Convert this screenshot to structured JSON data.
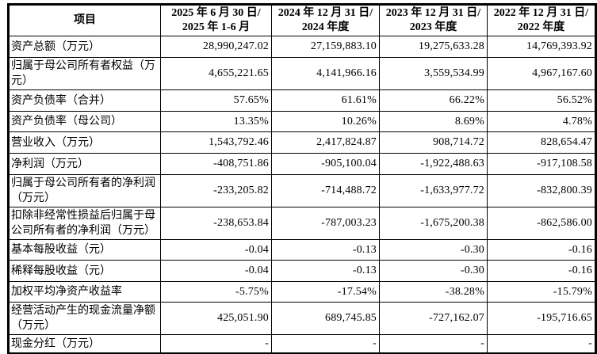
{
  "table": {
    "columns": [
      {
        "label": "项目"
      },
      {
        "label": "2025 年 6 月 30 日/\n2025 年 1-6 月"
      },
      {
        "label": "2024 年 12 月 31 日/\n2024 年度"
      },
      {
        "label": "2023 年 12 月 31 日/\n2023 年度"
      },
      {
        "label": "2022 年 12 月 31 日/\n2022 年度"
      }
    ],
    "rows": [
      {
        "label": "资产总额（万元）",
        "values": [
          "28,990,247.02",
          "27,159,883.10",
          "19,275,633.28",
          "14,769,393.92"
        ]
      },
      {
        "label": "归属于母公司所有者权益（万元）",
        "values": [
          "4,655,221.65",
          "4,141,966.16",
          "3,559,534.99",
          "4,967,167.60"
        ]
      },
      {
        "label": "资产负债率（合并）",
        "values": [
          "57.65%",
          "61.61%",
          "66.22%",
          "56.52%"
        ]
      },
      {
        "label": "资产负债率（母公司）",
        "values": [
          "13.35%",
          "10.26%",
          "8.69%",
          "4.78%"
        ]
      },
      {
        "label": "营业收入（万元）",
        "values": [
          "1,543,792.46",
          "2,417,824.87",
          "908,714.72",
          "828,654.47"
        ]
      },
      {
        "label": "净利润（万元）",
        "values": [
          "-408,751.86",
          "-905,100.04",
          "-1,922,488.63",
          "-917,108.58"
        ]
      },
      {
        "label": "归属于母公司所有者的净利润（万元）",
        "values": [
          "-233,205.82",
          "-714,488.72",
          "-1,633,977.72",
          "-832,800.39"
        ]
      },
      {
        "label": "扣除非经常性损益后归属于母公司所有者的净利润（万元）",
        "values": [
          "-238,653.84",
          "-787,003.23",
          "-1,675,200.38",
          "-862,586.00"
        ]
      },
      {
        "label": "基本每股收益（元）",
        "values": [
          "-0.04",
          "-0.13",
          "-0.30",
          "-0.16"
        ]
      },
      {
        "label": "稀释每股收益（元）",
        "values": [
          "-0.04",
          "-0.13",
          "-0.30",
          "-0.16"
        ]
      },
      {
        "label": "加权平均净资产收益率",
        "values": [
          "-5.75%",
          "-17.54%",
          "-38.28%",
          "-15.79%"
        ]
      },
      {
        "label": "经营活动产生的现金流量净额（万元）",
        "values": [
          "425,051.90",
          "689,745.85",
          "-727,162.07",
          "-195,716.65"
        ]
      },
      {
        "label": "现金分红（万元）",
        "values": [
          "-",
          "-",
          "-",
          "-"
        ]
      }
    ]
  }
}
